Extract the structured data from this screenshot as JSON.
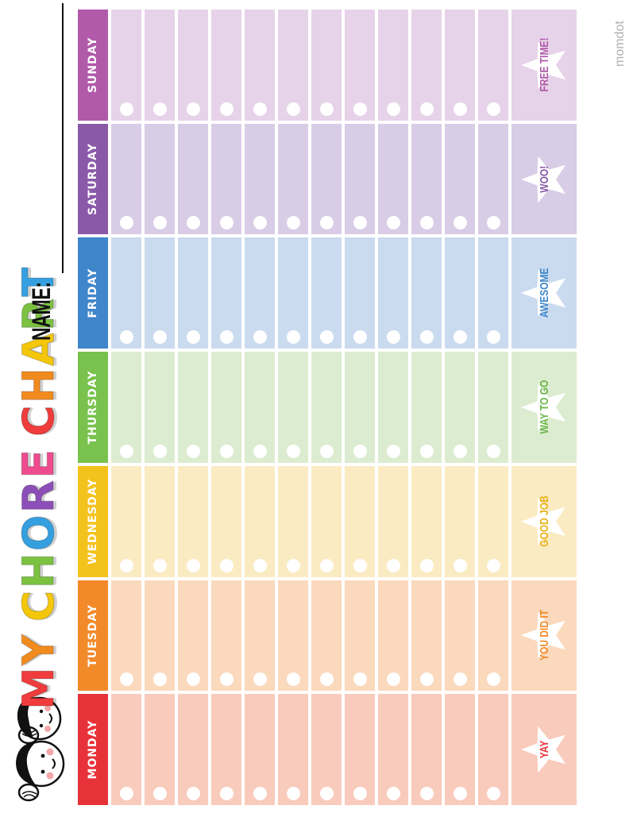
{
  "title": {
    "letters": [
      {
        "char": "M",
        "color": "#f03c3c"
      },
      {
        "char": "Y",
        "color": "#f28b1e"
      },
      {
        "char": " ",
        "color": "#ffffff"
      },
      {
        "char": "C",
        "color": "#f5c70a"
      },
      {
        "char": "H",
        "color": "#7cc241"
      },
      {
        "char": "O",
        "color": "#35a0e0"
      },
      {
        "char": "R",
        "color": "#8c4fb8"
      },
      {
        "char": "E",
        "color": "#ef4c8f"
      },
      {
        "char": " ",
        "color": "#ffffff"
      },
      {
        "char": "C",
        "color": "#f03c3c"
      },
      {
        "char": "H",
        "color": "#f28b1e"
      },
      {
        "char": "A",
        "color": "#f5c70a"
      },
      {
        "char": "R",
        "color": "#7cc241"
      },
      {
        "char": "T",
        "color": "#35a0e0"
      }
    ]
  },
  "name_label": "NAME:",
  "watermark": "momdot",
  "rows_per_day": 12,
  "days": [
    {
      "label": "MONDAY",
      "head": "#e8323a",
      "cell": "#f9cbbc",
      "praise_bg": "#f9cbbc",
      "praise": "YAY",
      "praise_color": "#e8323a"
    },
    {
      "label": "TUESDAY",
      "head": "#f28a2a",
      "cell": "#fad9bd",
      "praise_bg": "#fad9bd",
      "praise": "YOU DID IT",
      "praise_color": "#f28a2a"
    },
    {
      "label": "WEDNESDAY",
      "head": "#f4c21c",
      "cell": "#fbebc3",
      "praise_bg": "#fbebc3",
      "praise": "GOOD JOB",
      "praise_color": "#e8b21a"
    },
    {
      "label": "THURSDAY",
      "head": "#79c24d",
      "cell": "#dcecd0",
      "praise_bg": "#dcecd0",
      "praise": "WAY TO GO",
      "praise_color": "#6cb64a"
    },
    {
      "label": "FRIDAY",
      "head": "#3f86ca",
      "cell": "#cbdbef",
      "praise_bg": "#cbdbef",
      "praise": "AWESOME",
      "praise_color": "#3f86ca"
    },
    {
      "label": "SATURDAY",
      "head": "#8a5aa8",
      "cell": "#d8cce6",
      "praise_bg": "#d8cce6",
      "praise": "WOO!",
      "praise_color": "#8a5aa8"
    },
    {
      "label": "SUNDAY",
      "head": "#b05aa9",
      "cell": "#e6d2e9",
      "praise_bg": "#e6d2e9",
      "praise": "FREE TIME!",
      "praise_color": "#b05aa9"
    }
  ]
}
